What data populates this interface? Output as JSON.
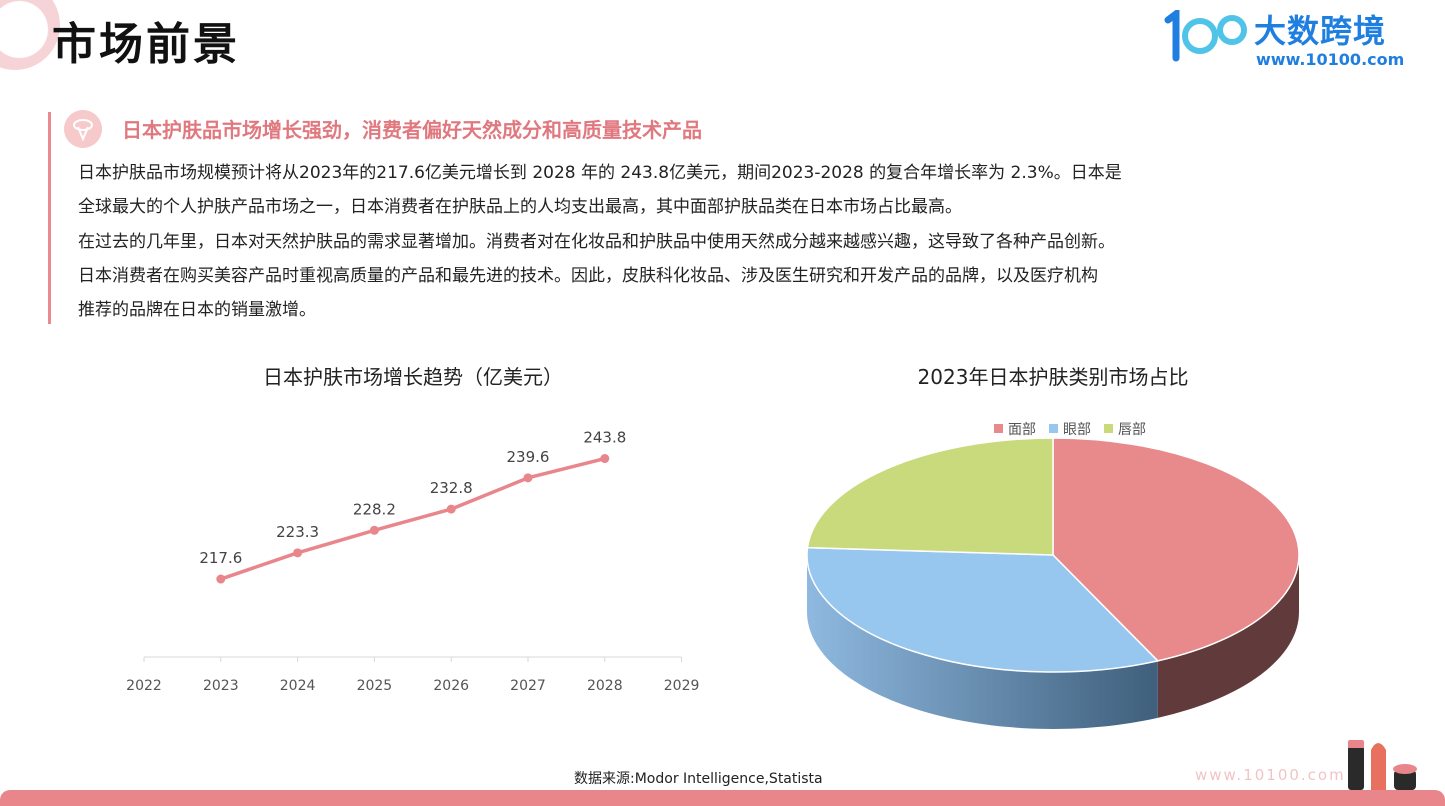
{
  "header": {
    "title": "市场前景",
    "logo_name": "大数跨境",
    "logo_url": "www.10100.com"
  },
  "section": {
    "heading": "日本护肤品市场增长强劲，消费者偏好天然成分和高质量技术产品",
    "paragraphs": [
      "日本护肤品市场规模预计将从2023年的217.6亿美元增长到 2028 年的 243.8亿美元，期间2023-2028 的复合年增长率为 2.3%。日本是",
      "全球最大的个人护肤产品市场之一，日本消费者在护肤品上的人均支出最高，其中面部护肤品类在日本市场占比最高。",
      "在过去的几年里，日本对天然护肤品的需求显著增加。消费者对在化妆品和护肤品中使用天然成分越来越感兴趣，这导致了各种产品创新。",
      "日本消费者在购买美容产品时重视高质量的产品和最先进的技术。因此，皮肤科化妆品、涉及医生研究和开发产品的品牌，以及医疗机构",
      "推荐的品牌在日本的销量激增。"
    ]
  },
  "chart_data": [
    {
      "type": "line",
      "title": "日本护肤市场增长趋势（亿美元）",
      "x": [
        2023,
        2024,
        2025,
        2026,
        2027,
        2028
      ],
      "values": [
        217.6,
        223.3,
        228.2,
        232.8,
        239.6,
        243.8
      ],
      "x_ticks": [
        "2022",
        "2023",
        "2024",
        "2025",
        "2026",
        "2027",
        "2028",
        "2029"
      ],
      "xlim": [
        2022,
        2029
      ],
      "data_labels": true,
      "color": "#e8868c"
    },
    {
      "type": "pie",
      "title": "2023年日本护肤类别市场占比",
      "legend_position": "top",
      "categories": [
        "面部",
        "眼部",
        "唇部"
      ],
      "values": [
        43,
        33,
        24
      ],
      "colors": [
        "#e8898c",
        "#97c6ef",
        "#c8da7c"
      ],
      "three_d": true
    }
  ],
  "footer": {
    "source": "数据来源:Modor Intelligence,Statista",
    "url": "www.10100.com"
  }
}
